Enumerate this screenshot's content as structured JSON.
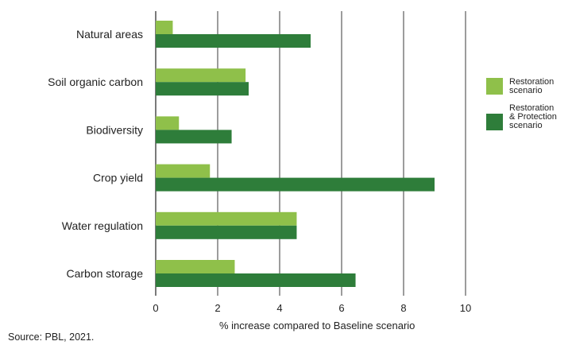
{
  "chart_data": {
    "type": "bar",
    "orientation": "horizontal",
    "categories": [
      "Natural areas",
      "Soil organic carbon",
      "Biodiversity",
      "Crop yield",
      "Water regulation",
      "Carbon storage"
    ],
    "series": [
      {
        "name": "Restoration scenario",
        "legend_lines": [
          "Restoration",
          "scenario"
        ],
        "color": "#8fc04a",
        "values": [
          0.55,
          2.9,
          0.75,
          1.75,
          4.55,
          2.55
        ]
      },
      {
        "name": "Restoration & Protection scenario",
        "legend_lines": [
          "Restoration",
          "& Protection",
          "scenario"
        ],
        "color": "#2e7d3a",
        "values": [
          5.0,
          3.0,
          2.45,
          9.0,
          4.55,
          6.45
        ]
      }
    ],
    "xlabel": "% increase compared to Baseline scenario",
    "xlim": [
      0,
      10
    ],
    "xticks": [
      0,
      2,
      4,
      6,
      8,
      10
    ],
    "grid": "vertical",
    "legend_position": "right"
  },
  "source": "Source: PBL, 2021."
}
